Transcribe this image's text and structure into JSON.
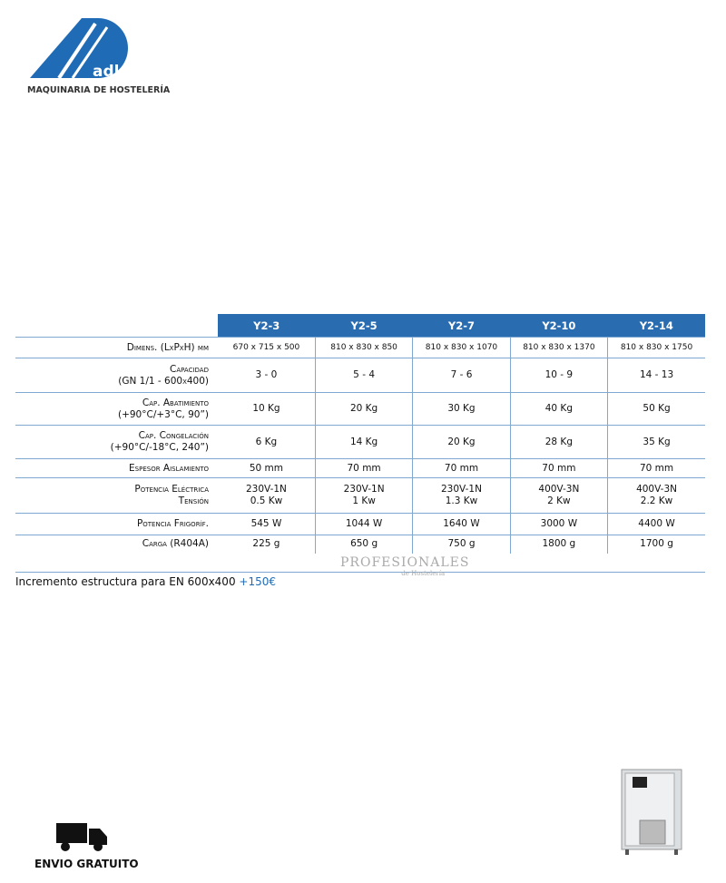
{
  "header": {
    "brand": "adler",
    "subtitle": "MAQUINARIA DE HOSTELERÍA"
  },
  "table": {
    "columns": [
      "Y2-3",
      "Y2-5",
      "Y2-7",
      "Y2-10",
      "Y2-14"
    ],
    "rows": [
      {
        "label": [
          "Dimens. (LxPxH) mm"
        ],
        "cells": [
          "670 x 715 x 500",
          "810 x 830 x 850",
          "810 x 830 x 1070",
          "810 x 830 x 1370",
          "810 x 830 x 1750"
        ]
      },
      {
        "label": [
          "Capacidad",
          "(GN 1/1 - 600x400)"
        ],
        "cells": [
          "3 - 0",
          "5 - 4",
          "7 - 6",
          "10 - 9",
          "14 - 13"
        ]
      },
      {
        "label": [
          "Cap. Abatimiento",
          "(+90°C/+3°C, 90”)"
        ],
        "cells": [
          "10 Kg",
          "20 Kg",
          "30 Kg",
          "40 Kg",
          "50 Kg"
        ]
      },
      {
        "label": [
          "Cap. Congelación",
          "(+90°C/-18°C, 240”)"
        ],
        "cells": [
          "6 Kg",
          "14 Kg",
          "20 Kg",
          "28 Kg",
          "35 Kg"
        ]
      },
      {
        "label": [
          "Espesor Aislamiento"
        ],
        "cells": [
          "50 mm",
          "70 mm",
          "70 mm",
          "70 mm",
          "70 mm"
        ]
      },
      {
        "label": [
          "Potencia Eléctrica",
          "Tensión"
        ],
        "cells": [
          [
            "230V-1N",
            "0.5 Kw"
          ],
          [
            "230V-1N",
            "1 Kw"
          ],
          [
            "230V-1N",
            "1.3 Kw"
          ],
          [
            "400V-3N",
            "2 Kw"
          ],
          [
            "400V-3N",
            "2.2 Kw"
          ]
        ]
      },
      {
        "label": [
          "Potencia Frigoríf."
        ],
        "cells": [
          "545 W",
          "1044 W",
          "1640 W",
          "3000 W",
          "4400 W"
        ]
      },
      {
        "label": [
          "Carga (R404A)"
        ],
        "cells": [
          "225 g",
          "650 g",
          "750 g",
          "1800 g",
          "1700 g"
        ]
      }
    ]
  },
  "footnote": {
    "text": "Incremento estructura para EN 600x400",
    "price": "+150€"
  },
  "watermark": {
    "title": "PROFESIONALES",
    "subtitle": "de Hostelería"
  },
  "shipping": "ENVIO GRATUITO"
}
